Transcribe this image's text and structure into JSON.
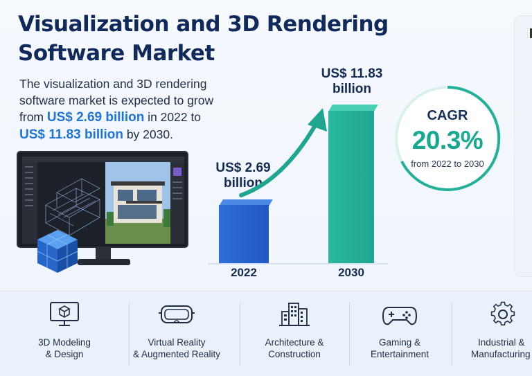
{
  "title": {
    "line1": "Visualization and 3D Rendering",
    "line2": "Software Market"
  },
  "intro": {
    "part1": "The visualization and 3D rendering software market is expected to grow from ",
    "value_2022": "US$ 2.69 billion",
    "part2": " in 2022 to ",
    "value_2030": "US$ 11.83 billion",
    "part3": " by 2030."
  },
  "chart_data": {
    "type": "bar",
    "categories": [
      "2022",
      "2030"
    ],
    "values": [
      2.69,
      11.83
    ],
    "value_labels": [
      {
        "line1": "US$ 2.69",
        "line2": "billion"
      },
      {
        "line1": "US$ 11.83",
        "line2": "billion"
      }
    ],
    "colors": [
      "#2563cf",
      "#22b099"
    ],
    "title": "",
    "xlabel": "",
    "ylabel": ""
  },
  "cagr": {
    "label": "CAGR",
    "value": "20.3%",
    "period": "from 2022 to 2030",
    "color": "#17a98f"
  },
  "categories": [
    {
      "icon": "monitor-cube-icon",
      "line1": "3D Modeling",
      "line2": "& Design"
    },
    {
      "icon": "vr-headset-icon",
      "line1": "Virtual Reality",
      "line2": "& Augmented Reality"
    },
    {
      "icon": "buildings-icon",
      "line1": "Architecture &",
      "line2": "Construction"
    },
    {
      "icon": "gamepad-icon",
      "line1": "Gaming &",
      "line2": "Entertainment"
    },
    {
      "icon": "gear-icon",
      "line1": "Industrial &",
      "line2": "Manufacturing"
    }
  ],
  "colors": {
    "title": "#112a5c",
    "accent_blue": "#1e74d8",
    "accent_teal": "#17a98f"
  }
}
